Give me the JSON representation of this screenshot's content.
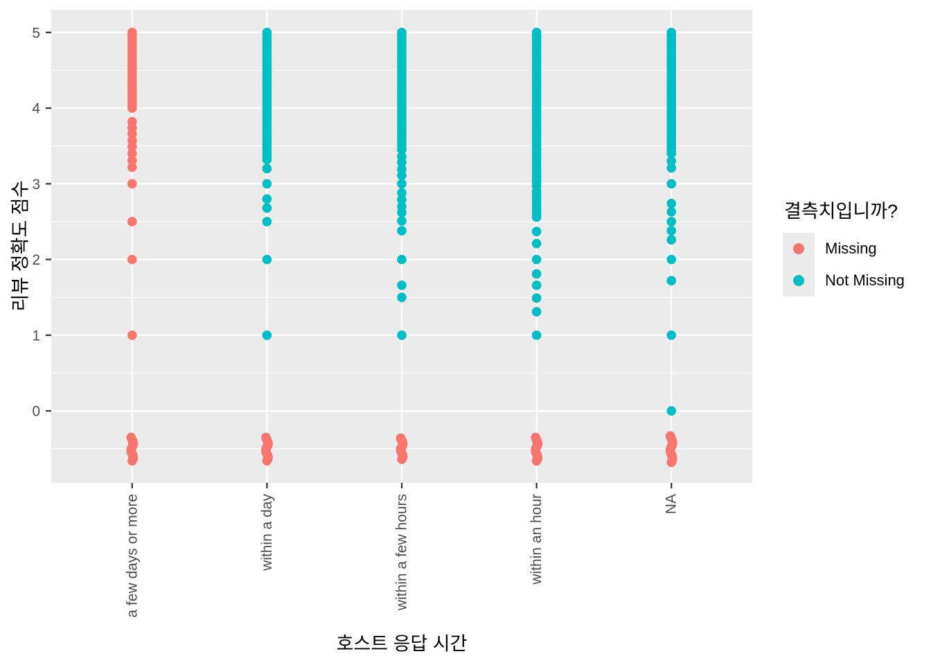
{
  "chart_data": {
    "type": "scatter",
    "title": "",
    "xlabel": "호스트 응답 시간",
    "ylabel": "리뷰 정확도 점수",
    "legend_title": "결측치입니까?",
    "legend_position": "right",
    "legend": [
      {
        "label": "Missing",
        "color": "#F8766D"
      },
      {
        "label": "Not Missing",
        "color": "#00BFC4"
      }
    ],
    "x_categories": [
      "a few days or more",
      "within a day",
      "within a few hours",
      "within an hour",
      "NA"
    ],
    "yticks": [
      0,
      1,
      2,
      3,
      4,
      5
    ],
    "ytick_labels": [
      "0",
      "1",
      "2",
      "3",
      "4",
      "5"
    ],
    "ylim": [
      -0.95,
      5.3
    ],
    "grid": true,
    "panel_background": "#EBEBEB",
    "grid_color": "#FFFFFF",
    "tick_color": "#333333",
    "tick_label_color": "#4D4D4D",
    "missing_cluster_color": "#F8766D",
    "columns": [
      {
        "category": "a few days or more",
        "group": "Missing",
        "color": "#F8766D",
        "dense_ranges": [
          [
            4.0,
            5.0
          ]
        ],
        "points": [
          3.82,
          3.74,
          3.66,
          3.57,
          3.49,
          3.4,
          3.31,
          3.22,
          3.0,
          2.5,
          2.0,
          1.0
        ],
        "missing_cluster_range": [
          -0.66,
          -0.35
        ]
      },
      {
        "category": "within a day",
        "group": "Not Missing",
        "color": "#00BFC4",
        "dense_ranges": [
          [
            3.32,
            5.0
          ]
        ],
        "points": [
          3.2,
          3.0,
          2.8,
          2.68,
          2.5,
          2.0,
          1.0
        ],
        "missing_cluster_range": [
          -0.66,
          -0.35
        ]
      },
      {
        "category": "within a few hours",
        "group": "Not Missing",
        "color": "#00BFC4",
        "dense_ranges": [
          [
            3.45,
            5.0
          ]
        ],
        "points": [
          3.36,
          3.28,
          3.19,
          3.11,
          3.0,
          2.88,
          2.79,
          2.7,
          2.62,
          2.51,
          2.38,
          2.0,
          1.66,
          1.5,
          1.0
        ],
        "missing_cluster_range": [
          -0.64,
          -0.36
        ]
      },
      {
        "category": "within an hour",
        "group": "Not Missing",
        "color": "#00BFC4",
        "dense_ranges": [
          [
            2.97,
            5.0
          ],
          [
            2.56,
            2.9
          ]
        ],
        "points": [
          2.37,
          2.21,
          2.0,
          1.81,
          1.66,
          1.49,
          1.31,
          1.0
        ],
        "missing_cluster_range": [
          -0.66,
          -0.35
        ]
      },
      {
        "category": "NA",
        "group": "Not Missing",
        "color": "#00BFC4",
        "dense_ranges": [
          [
            3.4,
            5.0
          ]
        ],
        "points": [
          3.3,
          3.21,
          3.0,
          2.74,
          2.63,
          2.5,
          2.38,
          2.26,
          2.0,
          1.72,
          1.0,
          0.0
        ],
        "missing_cluster_range": [
          -0.68,
          -0.33
        ]
      }
    ]
  }
}
